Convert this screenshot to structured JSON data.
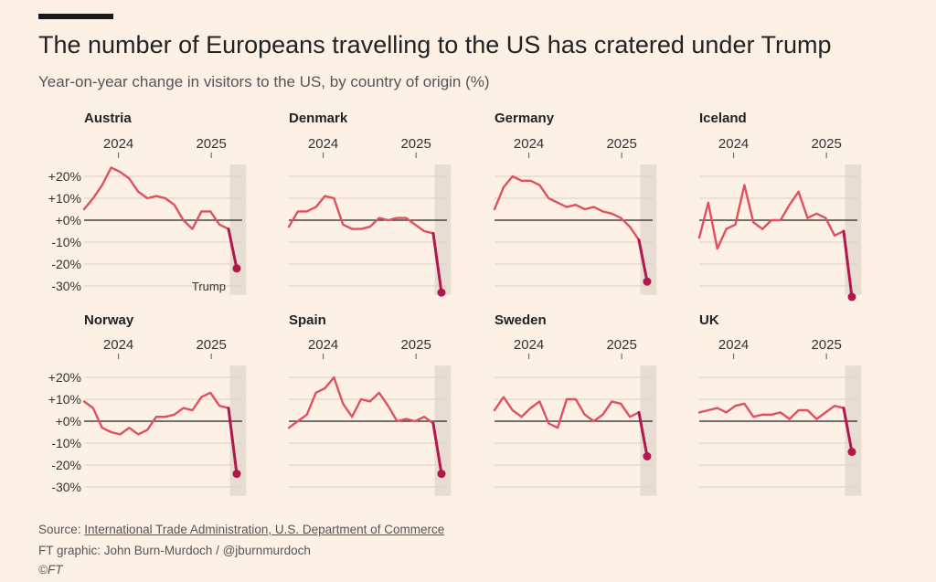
{
  "header": {
    "title": "The number of Europeans travelling to the US has cratered under Trump",
    "subtitle": "Year-on-year change in visitors to the US, by country of origin (%)"
  },
  "footer": {
    "source_prefix": "Source: ",
    "source_link": "International Trade Administration, U.S. Department of Commerce",
    "credit": "FT graphic: John Burn-Murdoch / @jburnmurdoch",
    "copyright": "©FT"
  },
  "colors": {
    "line": "#e0505e",
    "end_line": "#b3164c",
    "shade": "#e8ddd2",
    "grid": "#d9cfc5",
    "zero": "#222222"
  },
  "chart_data": {
    "type": "line",
    "layout": "small-multiples",
    "x_tick_labels": [
      "2024",
      "2025"
    ],
    "x_tick_positions": [
      5,
      18.5
    ],
    "y_tick_labels": [
      "+20%",
      "+10%",
      "+0%",
      "-10%",
      "-20%",
      "-30%"
    ],
    "y_ticks": [
      20,
      10,
      0,
      -10,
      -20,
      -30
    ],
    "ylim": [
      -34,
      27
    ],
    "x_range": [
      0,
      23
    ],
    "shaded_from": 22,
    "annotation": {
      "panel": "Austria",
      "text": "Trump"
    },
    "series": [
      {
        "name": "Austria",
        "values": [
          5,
          10,
          16,
          24,
          22,
          19,
          13,
          10,
          11,
          10,
          7,
          0,
          -4,
          4,
          4,
          -2,
          -4
        ],
        "final": -22
      },
      {
        "name": "Denmark",
        "values": [
          -3,
          4,
          4,
          6,
          11,
          10,
          -2,
          -4,
          -4,
          -3,
          1,
          0,
          1,
          1,
          -2,
          -5,
          -6
        ],
        "final": -33
      },
      {
        "name": "Germany",
        "values": [
          5,
          15,
          20,
          18,
          18,
          16,
          10,
          8,
          6,
          7,
          5,
          6,
          4,
          3,
          1,
          -3,
          -9
        ],
        "final": -28
      },
      {
        "name": "Iceland",
        "values": [
          -8,
          8,
          -13,
          -4,
          -2,
          16,
          -1,
          -4,
          0,
          0,
          7,
          13,
          1,
          3,
          1,
          -7,
          -5
        ],
        "final": -35
      },
      {
        "name": "Norway",
        "values": [
          9,
          6,
          -3,
          -5,
          -6,
          -3,
          -6,
          -4,
          2,
          2,
          3,
          6,
          5,
          11,
          13,
          7,
          6
        ],
        "final": -24
      },
      {
        "name": "Spain",
        "values": [
          -3,
          0,
          3,
          13,
          15,
          20,
          8,
          2,
          10,
          9,
          13,
          7,
          0,
          1,
          0,
          2,
          -1
        ],
        "final": -24
      },
      {
        "name": "Sweden",
        "values": [
          5,
          11,
          5,
          2,
          6,
          9,
          -1,
          -3,
          10,
          10,
          3,
          0,
          3,
          9,
          8,
          2,
          4
        ],
        "final": -16
      },
      {
        "name": "UK",
        "values": [
          4,
          5,
          6,
          4,
          7,
          8,
          2,
          3,
          3,
          4,
          1,
          5,
          5,
          1,
          4,
          7,
          6
        ],
        "final": -14
      }
    ]
  }
}
